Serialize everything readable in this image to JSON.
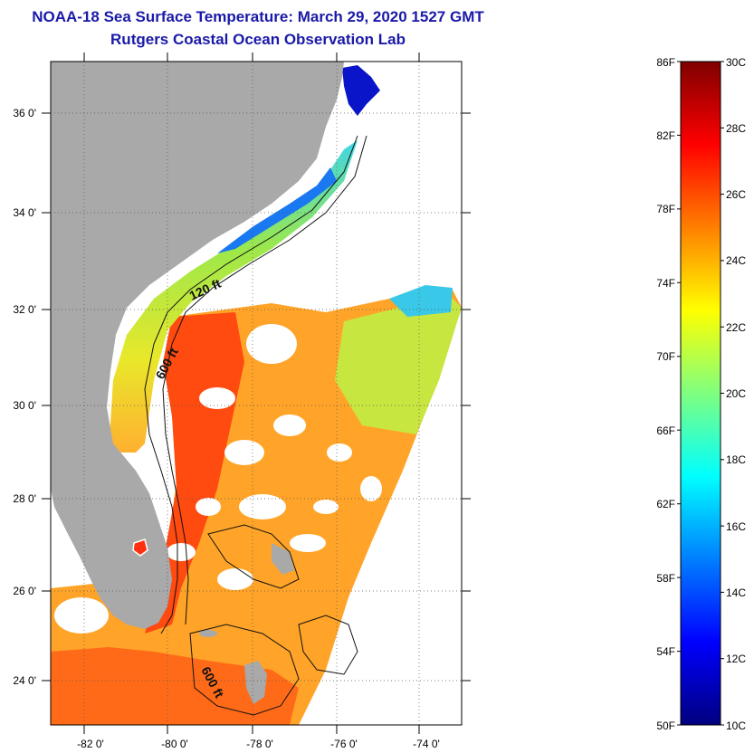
{
  "title": "NOAA-18 Sea Surface Temperature:  March 29, 2020 1527 GMT",
  "subtitle": "Rutgers Coastal Ocean Observation Lab",
  "map": {
    "lat_ticks": [
      "36 0'",
      "34 0'",
      "32 0'",
      "30 0'",
      "28 0'",
      "26 0'",
      "24 0'"
    ],
    "lon_ticks": [
      "-82 0'",
      "-80 0'",
      "-78 0'",
      "-76 0'",
      "-74 0'"
    ],
    "contour_labels": [
      "120 ft",
      "600 ft",
      "600 ft"
    ],
    "land_color": "#a9a9a9",
    "cloud_color": "#ffffff"
  },
  "colorbar": {
    "fahrenheit_ticks": [
      "86F",
      "82F",
      "78F",
      "74F",
      "70F",
      "66F",
      "62F",
      "58F",
      "54F",
      "50F"
    ],
    "celsius_ticks": [
      "30C",
      "28C",
      "26C",
      "24C",
      "22C",
      "20C",
      "18C",
      "16C",
      "14C",
      "12C",
      "10C"
    ],
    "colors": [
      "#00007f",
      "#0000ff",
      "#007fff",
      "#00ffff",
      "#7fff7f",
      "#ffff00",
      "#ff7f00",
      "#ff0000",
      "#7f0000"
    ]
  }
}
